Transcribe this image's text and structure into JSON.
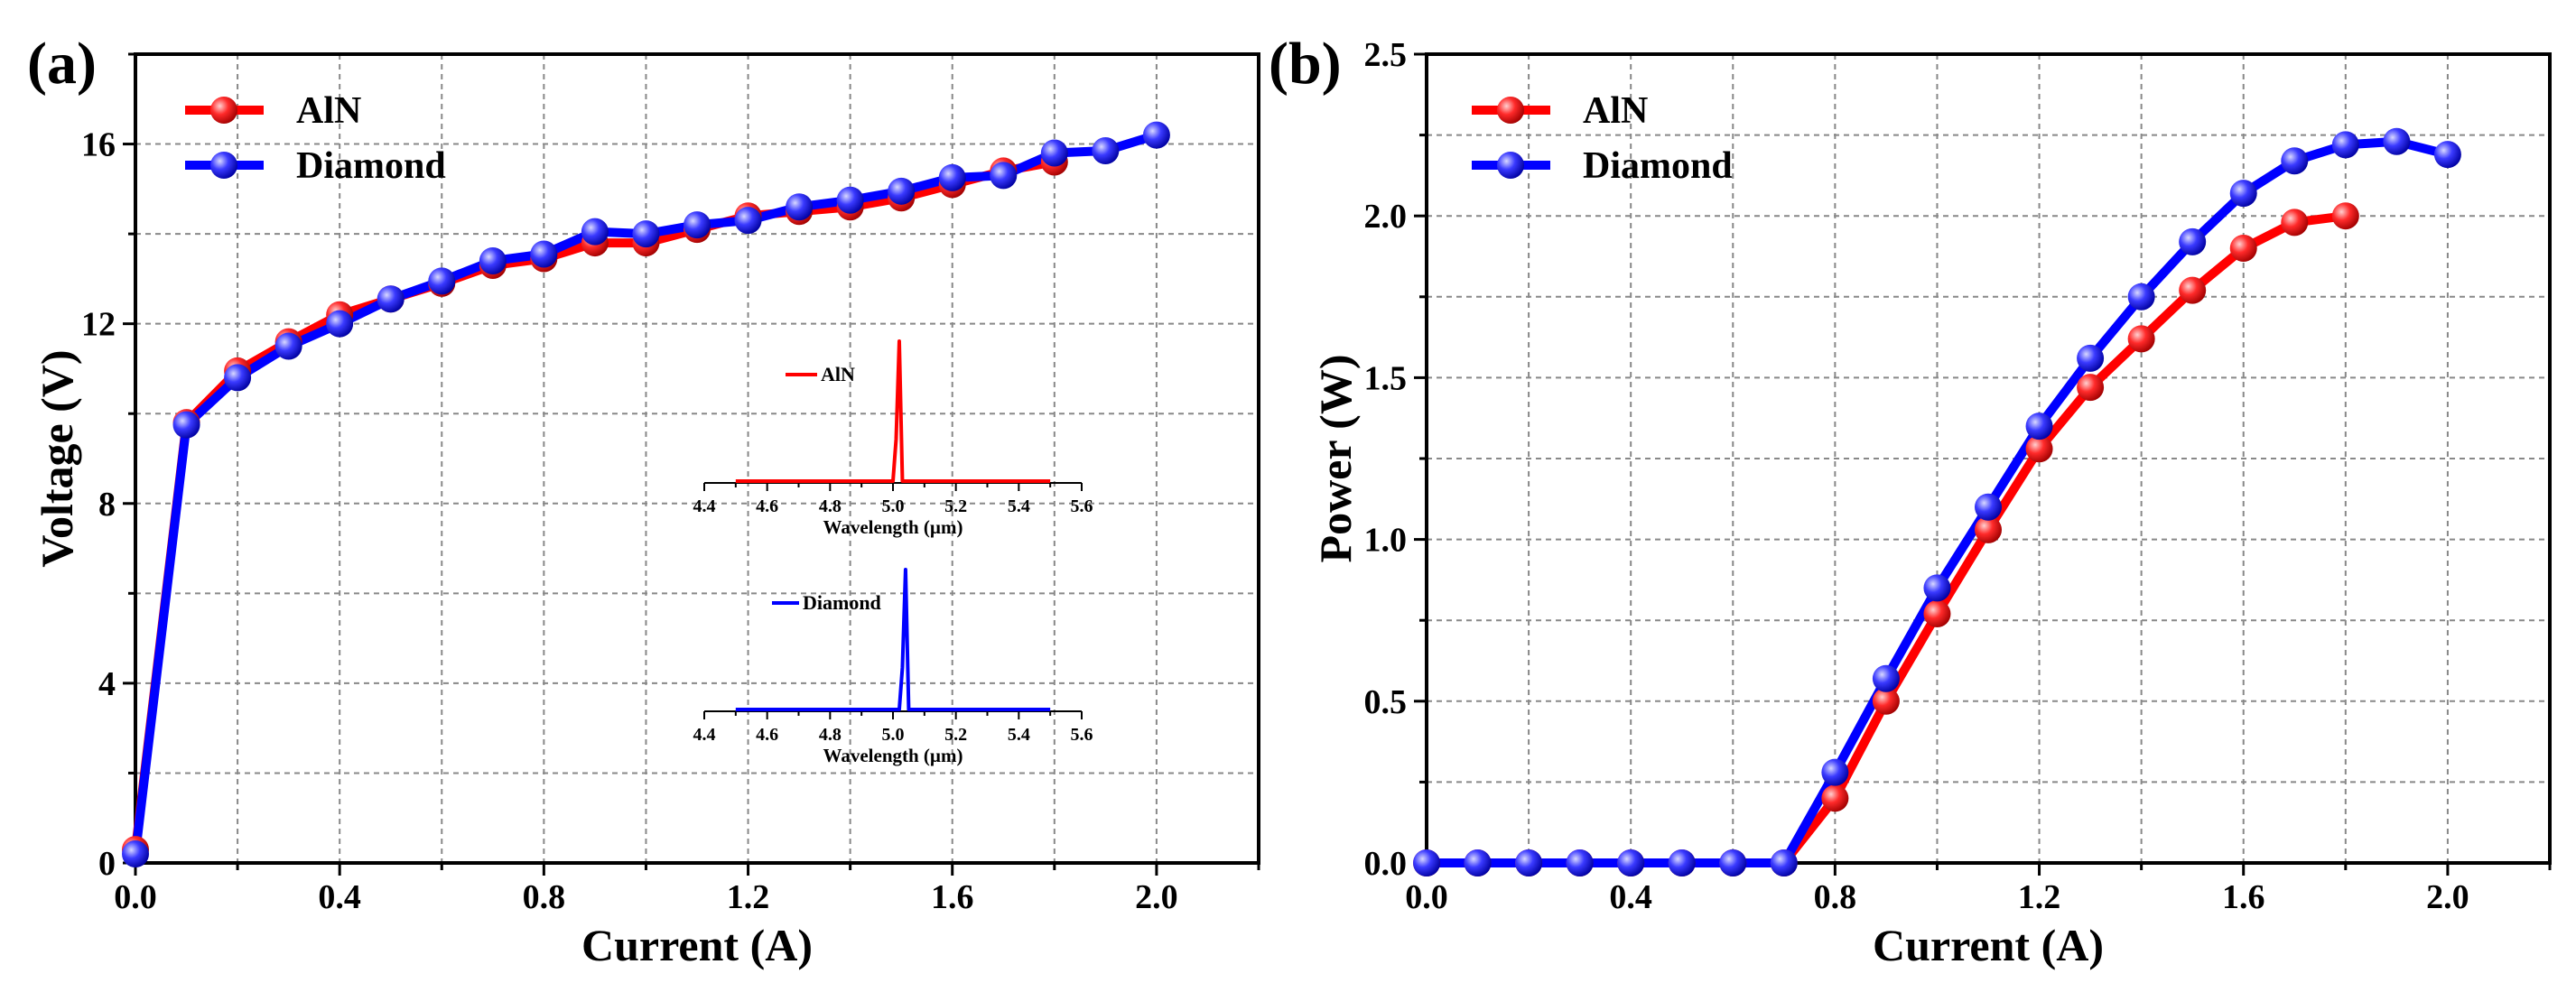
{
  "chart_data": [
    {
      "panel_label": "(a)",
      "type": "line",
      "xlabel": "Current (A)",
      "ylabel": "Voltage (V)",
      "xlim": [
        0,
        2.2
      ],
      "ylim": [
        0,
        18
      ],
      "xticks": [
        "0.0",
        "0.4",
        "0.8",
        "1.2",
        "1.6",
        "2.0"
      ],
      "yticks": [
        "0",
        "4",
        "8",
        "12",
        "16"
      ],
      "grid": true,
      "legend_position": "top-left",
      "colors": {
        "AlN": "#ff0000",
        "Diamond": "#0000ff"
      },
      "series": [
        {
          "name": "AlN",
          "x": [
            0,
            0.1,
            0.2,
            0.3,
            0.4,
            0.5,
            0.6,
            0.7,
            0.8,
            0.9,
            1.0,
            1.1,
            1.2,
            1.3,
            1.4,
            1.5,
            1.6,
            1.7,
            1.8
          ],
          "y": [
            0.3,
            9.8,
            10.95,
            11.6,
            12.2,
            12.55,
            12.9,
            13.3,
            13.45,
            13.8,
            13.8,
            14.1,
            14.4,
            14.5,
            14.6,
            14.8,
            15.1,
            15.4,
            15.6
          ]
        },
        {
          "name": "Diamond",
          "x": [
            0,
            0.1,
            0.2,
            0.3,
            0.4,
            0.5,
            0.6,
            0.7,
            0.8,
            0.9,
            1.0,
            1.1,
            1.2,
            1.3,
            1.4,
            1.5,
            1.6,
            1.7,
            1.8,
            1.9,
            2.0
          ],
          "y": [
            0.2,
            9.75,
            10.8,
            11.5,
            12.0,
            12.55,
            12.95,
            13.4,
            13.55,
            14.05,
            14.0,
            14.2,
            14.3,
            14.6,
            14.75,
            14.95,
            15.25,
            15.3,
            15.8,
            15.85,
            16.2
          ]
        }
      ],
      "insets": [
        {
          "type": "line",
          "legend": "AlN",
          "xlabel": "Wavelength (µm)",
          "xlim": [
            4.4,
            5.6
          ],
          "xticks": [
            "4.4",
            "4.6",
            "4.8",
            "5.0",
            "5.2",
            "5.4",
            "5.6"
          ],
          "x": [
            4.5,
            5.0,
            5.01,
            5.02,
            5.03,
            5.5
          ],
          "y": [
            0,
            0,
            0.3,
            1.0,
            0,
            0
          ]
        },
        {
          "type": "line",
          "legend": "Diamond",
          "xlabel": "Wavelength (µm)",
          "xlim": [
            4.4,
            5.6
          ],
          "xticks": [
            "4.4",
            "4.6",
            "4.8",
            "5.0",
            "5.2",
            "5.4",
            "5.6"
          ],
          "x": [
            4.5,
            5.02,
            5.03,
            5.04,
            5.05,
            5.5
          ],
          "y": [
            0,
            0,
            0.3,
            1.0,
            0,
            0
          ]
        }
      ]
    },
    {
      "panel_label": "(b)",
      "type": "line",
      "xlabel": "Current (A)",
      "ylabel": "Power (W)",
      "xlim": [
        0,
        2.2
      ],
      "ylim": [
        0,
        2.5
      ],
      "xticks": [
        "0.0",
        "0.4",
        "0.8",
        "1.2",
        "1.6",
        "2.0"
      ],
      "yticks": [
        "0.0",
        "0.5",
        "1.0",
        "1.5",
        "2.0",
        "2.5"
      ],
      "grid": true,
      "legend_position": "top-left",
      "colors": {
        "AlN": "#ff0000",
        "Diamond": "#0000ff"
      },
      "series": [
        {
          "name": "AlN",
          "x": [
            0,
            0.1,
            0.2,
            0.3,
            0.4,
            0.5,
            0.6,
            0.7,
            0.8,
            0.9,
            1.0,
            1.1,
            1.2,
            1.3,
            1.4,
            1.5,
            1.6,
            1.7,
            1.8
          ],
          "y": [
            0,
            0,
            0,
            0,
            0,
            0,
            0,
            0,
            0.2,
            0.5,
            0.77,
            1.03,
            1.28,
            1.47,
            1.62,
            1.77,
            1.9,
            1.98,
            2.0
          ]
        },
        {
          "name": "Diamond",
          "x": [
            0,
            0.1,
            0.2,
            0.3,
            0.4,
            0.5,
            0.6,
            0.7,
            0.8,
            0.9,
            1.0,
            1.1,
            1.2,
            1.3,
            1.4,
            1.5,
            1.6,
            1.7,
            1.8,
            1.9,
            2.0
          ],
          "y": [
            0,
            0,
            0,
            0,
            0,
            0,
            0,
            0,
            0.28,
            0.57,
            0.85,
            1.1,
            1.35,
            1.56,
            1.75,
            1.92,
            2.07,
            2.17,
            2.22,
            2.23,
            2.19
          ]
        }
      ]
    }
  ]
}
